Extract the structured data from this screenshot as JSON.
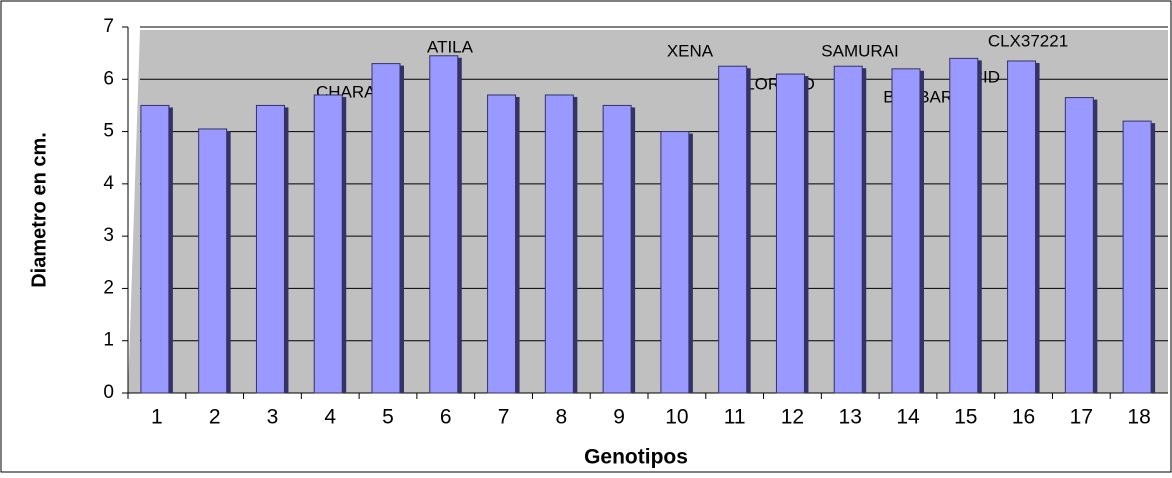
{
  "chart_data": {
    "type": "bar",
    "x_label": "Genotipos",
    "y_label": "Diametro en cm.",
    "categories": [
      "1",
      "2",
      "3",
      "4",
      "5",
      "6",
      "7",
      "8",
      "9",
      "10",
      "11",
      "12",
      "13",
      "14",
      "15",
      "16",
      "17",
      "18"
    ],
    "values": [
      5.5,
      5.05,
      5.5,
      5.7,
      6.3,
      6.45,
      5.7,
      5.7,
      5.5,
      5.0,
      6.25,
      6.1,
      6.25,
      6.2,
      6.4,
      6.35,
      5.65,
      5.2
    ],
    "color": "#9999ff",
    "ylim": [
      0,
      7
    ],
    "yticks": [
      0,
      1,
      2,
      3,
      4,
      5,
      6,
      7
    ],
    "grid": true,
    "annotations": [
      "ATILA",
      "CHARAND",
      "XENA",
      "LORETO",
      "SAMURAI",
      "BARBARAN",
      "ELCID",
      "CLX37221"
    ]
  }
}
